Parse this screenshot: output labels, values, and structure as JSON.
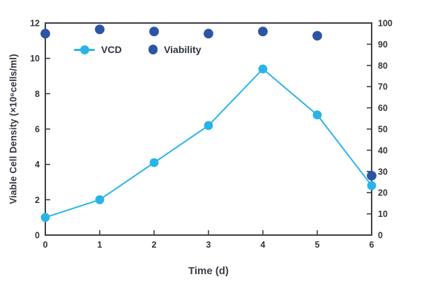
{
  "chart_data": {
    "type": "line",
    "title": "",
    "xlabel": "Time (d)",
    "ylabel": "Viable Cell Density (×10⁶cells/ml)",
    "ylabel_right": "",
    "x": [
      0,
      1,
      2,
      3,
      4,
      5,
      6
    ],
    "xlim": [
      0,
      6
    ],
    "x_ticks": [
      0,
      1,
      2,
      3,
      4,
      5,
      6
    ],
    "ylim_left": [
      0,
      12
    ],
    "left_ticks": [
      0,
      2,
      4,
      6,
      8,
      10,
      12
    ],
    "ylim_right": [
      0,
      100
    ],
    "right_ticks": [
      0,
      10,
      20,
      30,
      40,
      50,
      60,
      70,
      80,
      90,
      100
    ],
    "grid": false,
    "legend_position": "inside-top-left",
    "series": [
      {
        "name": "VCD",
        "axis": "left",
        "marker": "circle-line",
        "color": "#29b4e8",
        "values": [
          1.0,
          2.0,
          4.1,
          6.2,
          9.4,
          6.8,
          2.8
        ]
      },
      {
        "name": "Viability",
        "axis": "right",
        "marker": "circle",
        "color": "#2d55a6",
        "values": [
          95,
          97,
          96,
          95,
          96,
          94,
          28
        ]
      }
    ]
  },
  "style": {
    "axis_color": "#3d3d42",
    "tick_label_color": "#33343c",
    "background": "#ffffff"
  }
}
